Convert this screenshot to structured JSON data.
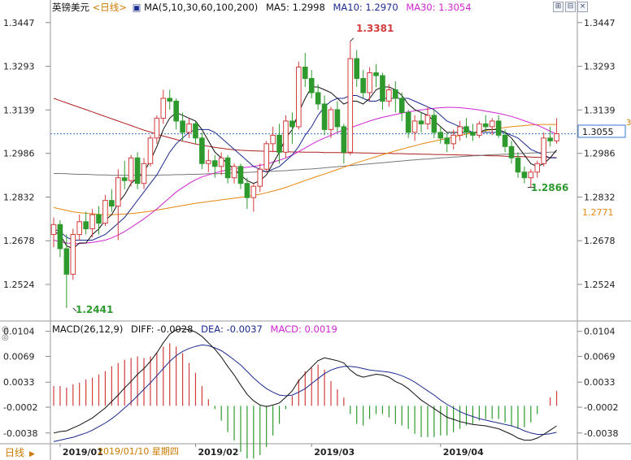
{
  "header": {
    "symbol": "英镑美元",
    "period": "<日线>",
    "ma_params": "MA(5,10,30,60,100,200)",
    "ma5": "MA5: 1.2998",
    "ma10": "MA10: 1.2970",
    "ma30": "MA30: 1.3054"
  },
  "macd_header": {
    "params": "MACD(26,12,9)",
    "diff": "DIFF: -0.0028",
    "dea": "DEA: -0.0037",
    "macd": "MACD: 0.0019"
  },
  "toolbar": {
    "btn1": "⊞",
    "btn2": "⊟",
    "btn3": "×"
  },
  "footer": {
    "period_tab": "日线",
    "cursor_date": "2019/01/10  星期四",
    "months": [
      "2019/01",
      "2019/02",
      "2019/03",
      "2019/04"
    ]
  },
  "price_axis": {
    "ticks": [
      "1.3447",
      "1.3293",
      "1.3139",
      "1.2986",
      "1.2832",
      "1.2678",
      "1.2524"
    ],
    "current_price": "1.3055",
    "ma200_label": "1.2771",
    "last_close_level": 1.3055,
    "marker": "3"
  },
  "annotations": {
    "high": "1.3381",
    "low": "1.2441",
    "recent_low": "1.2866"
  },
  "macd_axis": {
    "ticks": [
      "0.0104",
      "0.0069",
      "0.0033",
      "-0.0002",
      "-0.0038"
    ]
  },
  "colors": {
    "up": "#d23c3c",
    "down": "#2e9a2e",
    "ma5": "#111111",
    "ma10": "#1b2a8f",
    "ma30": "#d024d0",
    "ma60": "#e8870f",
    "ma100": "#777777",
    "ma200": "#b02020",
    "macd_up": "#d23c3c",
    "macd_down": "#2e9a2e",
    "diff": "#111111",
    "dea": "#1b2a8f",
    "current_line": "#3377cc"
  },
  "chart_data": [
    {
      "type": "candlestick",
      "title": "英镑美元 <日线>",
      "ylim": [
        1.2395,
        1.3475
      ],
      "ohlc": [
        [
          1.27,
          1.276,
          1.2655,
          1.2735
        ],
        [
          1.2735,
          1.275,
          1.262,
          1.265
        ],
        [
          1.265,
          1.27,
          1.2441,
          1.256
        ],
        [
          1.256,
          1.272,
          1.254,
          1.27
        ],
        [
          1.27,
          1.277,
          1.268,
          1.2745
        ],
        [
          1.2745,
          1.278,
          1.27,
          1.272
        ],
        [
          1.272,
          1.279,
          1.269,
          1.277
        ],
        [
          1.277,
          1.28,
          1.27,
          1.274
        ],
        [
          1.274,
          1.284,
          1.273,
          1.282
        ],
        [
          1.282,
          1.286,
          1.278,
          1.28
        ],
        [
          1.28,
          1.293,
          1.268,
          1.29
        ],
        [
          1.29,
          1.296,
          1.286,
          1.289
        ],
        [
          1.289,
          1.298,
          1.287,
          1.297
        ],
        [
          1.297,
          1.299,
          1.286,
          1.288
        ],
        [
          1.288,
          1.297,
          1.286,
          1.295
        ],
        [
          1.295,
          1.305,
          1.294,
          1.304
        ],
        [
          1.304,
          1.312,
          1.302,
          1.311
        ],
        [
          1.311,
          1.321,
          1.309,
          1.318
        ],
        [
          1.318,
          1.321,
          1.314,
          1.317
        ],
        [
          1.317,
          1.318,
          1.307,
          1.31
        ],
        [
          1.31,
          1.313,
          1.303,
          1.306
        ],
        [
          1.306,
          1.311,
          1.304,
          1.309
        ],
        [
          1.309,
          1.31,
          1.302,
          1.304
        ],
        [
          1.304,
          1.306,
          1.293,
          1.295
        ],
        [
          1.295,
          1.3,
          1.292,
          1.296
        ],
        [
          1.296,
          1.298,
          1.29,
          1.294
        ],
        [
          1.294,
          1.299,
          1.291,
          1.297
        ],
        [
          1.297,
          1.298,
          1.288,
          1.29
        ],
        [
          1.29,
          1.295,
          1.288,
          1.294
        ],
        [
          1.294,
          1.295,
          1.286,
          1.288
        ],
        [
          1.288,
          1.29,
          1.279,
          1.283
        ],
        [
          1.283,
          1.288,
          1.278,
          1.287
        ],
        [
          1.287,
          1.295,
          1.285,
          1.293
        ],
        [
          1.293,
          1.303,
          1.292,
          1.302
        ],
        [
          1.302,
          1.308,
          1.299,
          1.305
        ],
        [
          1.305,
          1.309,
          1.295,
          1.299
        ],
        [
          1.299,
          1.312,
          1.297,
          1.31
        ],
        [
          1.31,
          1.313,
          1.302,
          1.308
        ],
        [
          1.308,
          1.331,
          1.307,
          1.329
        ],
        [
          1.329,
          1.334,
          1.322,
          1.325
        ],
        [
          1.325,
          1.328,
          1.318,
          1.32
        ],
        [
          1.32,
          1.323,
          1.314,
          1.316
        ],
        [
          1.316,
          1.319,
          1.305,
          1.307
        ],
        [
          1.307,
          1.315,
          1.304,
          1.314
        ],
        [
          1.314,
          1.317,
          1.306,
          1.308
        ],
        [
          1.308,
          1.309,
          1.295,
          1.299
        ],
        [
          1.299,
          1.3381,
          1.298,
          1.332
        ],
        [
          1.332,
          1.335,
          1.322,
          1.325
        ],
        [
          1.325,
          1.328,
          1.318,
          1.32
        ],
        [
          1.32,
          1.329,
          1.317,
          1.327
        ],
        [
          1.327,
          1.33,
          1.322,
          1.326
        ],
        [
          1.326,
          1.327,
          1.314,
          1.317
        ],
        [
          1.317,
          1.323,
          1.315,
          1.321
        ],
        [
          1.321,
          1.324,
          1.313,
          1.318
        ],
        [
          1.318,
          1.32,
          1.31,
          1.313
        ],
        [
          1.313,
          1.314,
          1.304,
          1.306
        ],
        [
          1.306,
          1.312,
          1.303,
          1.31
        ],
        [
          1.31,
          1.313,
          1.306,
          1.309
        ],
        [
          1.309,
          1.315,
          1.307,
          1.312
        ],
        [
          1.312,
          1.314,
          1.304,
          1.306
        ],
        [
          1.306,
          1.308,
          1.302,
          1.304
        ],
        [
          1.304,
          1.306,
          1.299,
          1.302
        ],
        [
          1.302,
          1.307,
          1.3,
          1.305
        ],
        [
          1.305,
          1.31,
          1.303,
          1.308
        ],
        [
          1.308,
          1.311,
          1.304,
          1.306
        ],
        [
          1.306,
          1.309,
          1.303,
          1.305
        ],
        [
          1.305,
          1.31,
          1.304,
          1.309
        ],
        [
          1.309,
          1.312,
          1.306,
          1.308
        ],
        [
          1.308,
          1.311,
          1.305,
          1.31
        ],
        [
          1.31,
          1.312,
          1.304,
          1.305
        ],
        [
          1.305,
          1.307,
          1.299,
          1.301
        ],
        [
          1.301,
          1.303,
          1.295,
          1.297
        ],
        [
          1.297,
          1.299,
          1.29,
          1.292
        ],
        [
          1.292,
          1.294,
          1.288,
          1.29
        ],
        [
          1.29,
          1.293,
          1.2866,
          1.292
        ],
        [
          1.292,
          1.296,
          1.29,
          1.295
        ],
        [
          1.295,
          1.306,
          1.294,
          1.304
        ],
        [
          1.304,
          1.308,
          1.301,
          1.303
        ],
        [
          1.303,
          1.311,
          1.302,
          1.3055
        ]
      ],
      "ma5": [
        1.271,
        1.27,
        1.266,
        1.265,
        1.267,
        1.267,
        1.27,
        1.272,
        1.275,
        1.277,
        1.281,
        1.284,
        1.288,
        1.29,
        1.292,
        1.296,
        1.301,
        1.307,
        1.311,
        1.313,
        1.312,
        1.311,
        1.31,
        1.307,
        1.303,
        1.299,
        1.297,
        1.295,
        1.293,
        1.291,
        1.289,
        1.288,
        1.289,
        1.291,
        1.295,
        1.299,
        1.304,
        1.307,
        1.313,
        1.318,
        1.322,
        1.322,
        1.321,
        1.32,
        1.318,
        1.316,
        1.317,
        1.317,
        1.316,
        1.318,
        1.321,
        1.322,
        1.322,
        1.321,
        1.319,
        1.316,
        1.314,
        1.313,
        1.312,
        1.31,
        1.308,
        1.306,
        1.306,
        1.306,
        1.306,
        1.306,
        1.306,
        1.307,
        1.307,
        1.307,
        1.306,
        1.304,
        1.301,
        1.298,
        1.295,
        1.294,
        1.295,
        1.297,
        1.2998
      ],
      "ma10": [
        1.272,
        1.271,
        1.269,
        1.268,
        1.268,
        1.268,
        1.268,
        1.269,
        1.27,
        1.272,
        1.274,
        1.276,
        1.279,
        1.282,
        1.285,
        1.288,
        1.291,
        1.295,
        1.299,
        1.302,
        1.304,
        1.306,
        1.307,
        1.307,
        1.307,
        1.306,
        1.304,
        1.302,
        1.3,
        1.298,
        1.296,
        1.294,
        1.293,
        1.292,
        1.293,
        1.294,
        1.296,
        1.298,
        1.301,
        1.305,
        1.308,
        1.312,
        1.315,
        1.317,
        1.318,
        1.318,
        1.319,
        1.319,
        1.318,
        1.317,
        1.317,
        1.318,
        1.318,
        1.318,
        1.318,
        1.318,
        1.317,
        1.316,
        1.315,
        1.314,
        1.312,
        1.31,
        1.309,
        1.308,
        1.307,
        1.306,
        1.306,
        1.306,
        1.306,
        1.306,
        1.306,
        1.305,
        1.304,
        1.302,
        1.3,
        1.299,
        1.298,
        1.297,
        1.297
      ],
      "ma30": [
        1.268,
        1.2675,
        1.267,
        1.2668,
        1.2668,
        1.267,
        1.2672,
        1.2676,
        1.268,
        1.2688,
        1.2698,
        1.271,
        1.2725,
        1.274,
        1.2755,
        1.2772,
        1.279,
        1.281,
        1.283,
        1.285,
        1.2865,
        1.288,
        1.2893,
        1.2903,
        1.291,
        1.2917,
        1.2923,
        1.2928,
        1.2932,
        1.2935,
        1.2937,
        1.294,
        1.2944,
        1.2948,
        1.2955,
        1.2962,
        1.297,
        1.298,
        1.2992,
        1.3005,
        1.3018,
        1.303,
        1.304,
        1.305,
        1.306,
        1.3068,
        1.3076,
        1.3084,
        1.3092,
        1.31,
        1.3107,
        1.3113,
        1.3118,
        1.3123,
        1.3128,
        1.3132,
        1.3136,
        1.3139,
        1.3142,
        1.3145,
        1.3147,
        1.3148,
        1.3148,
        1.3147,
        1.3145,
        1.3142,
        1.3139,
        1.3135,
        1.3131,
        1.3127,
        1.3122,
        1.3116,
        1.3109,
        1.3101,
        1.3093,
        1.3085,
        1.3075,
        1.3064,
        1.3054
      ],
      "ma60": [
        1.2795,
        1.279,
        1.2785,
        1.278,
        1.2777,
        1.2775,
        1.2773,
        1.2771,
        1.277,
        1.277,
        1.2771,
        1.2772,
        1.2774,
        1.2776,
        1.2779,
        1.2782,
        1.2786,
        1.279,
        1.2794,
        1.2798,
        1.2802,
        1.2806,
        1.281,
        1.2813,
        1.2816,
        1.2819,
        1.2822,
        1.2825,
        1.2828,
        1.2831,
        1.2834,
        1.2838,
        1.2842,
        1.2847,
        1.2853,
        1.2859,
        1.2866,
        1.2874,
        1.2882,
        1.289,
        1.2898,
        1.2906,
        1.2913,
        1.2921,
        1.2929,
        1.2937,
        1.2945,
        1.2953,
        1.296,
        1.2967,
        1.2974,
        1.2981,
        1.2988,
        1.2995,
        1.3001,
        1.3007,
        1.3013,
        1.3019,
        1.3024,
        1.3029,
        1.3034,
        1.3039,
        1.3044,
        1.3049,
        1.3054,
        1.3058,
        1.3062,
        1.3066,
        1.307,
        1.3074,
        1.3077,
        1.308,
        1.3082,
        1.3084,
        1.3086,
        1.3087,
        1.3088,
        1.3088,
        1.3088
      ],
      "ma100": [
        1.2915,
        1.2915,
        1.2914,
        1.2913,
        1.2912,
        1.2912,
        1.2911,
        1.291,
        1.291,
        1.2909,
        1.2909,
        1.2909,
        1.2909,
        1.2909,
        1.2909,
        1.2909,
        1.2909,
        1.291,
        1.291,
        1.2911,
        1.2911,
        1.2912,
        1.2912,
        1.2913,
        1.2914,
        1.2914,
        1.2915,
        1.2916,
        1.2917,
        1.2918,
        1.2919,
        1.292,
        1.2921,
        1.2922,
        1.2923,
        1.2924,
        1.2925,
        1.2927,
        1.2928,
        1.293,
        1.2931,
        1.2933,
        1.2935,
        1.2937,
        1.2939,
        1.2941,
        1.2943,
        1.2945,
        1.2947,
        1.2949,
        1.2951,
        1.2953,
        1.2955,
        1.2957,
        1.2959,
        1.2961,
        1.2963,
        1.2965,
        1.2966,
        1.2968,
        1.297,
        1.2971,
        1.2973,
        1.2974,
        1.2976,
        1.2977,
        1.2978,
        1.298,
        1.2981,
        1.2982,
        1.2983,
        1.2984,
        1.2985,
        1.2986,
        1.2987,
        1.2988,
        1.2989,
        1.299,
        1.2991
      ],
      "ma200": [
        1.318,
        1.3172,
        1.3164,
        1.3156,
        1.3148,
        1.314,
        1.3132,
        1.3124,
        1.3116,
        1.3108,
        1.31,
        1.3092,
        1.3084,
        1.3076,
        1.3068,
        1.3061,
        1.3054,
        1.3047,
        1.3041,
        1.3035,
        1.3029,
        1.3024,
        1.3019,
        1.3015,
        1.3011,
        1.3007,
        1.3004,
        1.3001,
        1.2999,
        1.2997,
        1.2996,
        1.2995,
        1.2994,
        1.2993,
        1.2993,
        1.2992,
        1.2992,
        1.2991,
        1.2991,
        1.299,
        1.299,
        1.299,
        1.2989,
        1.2989,
        1.2989,
        1.2988,
        1.2988,
        1.2988,
        1.2987,
        1.2987,
        1.2986,
        1.2986,
        1.2986,
        1.2985,
        1.2985,
        1.2984,
        1.2984,
        1.2983,
        1.2983,
        1.2982,
        1.2982,
        1.2981,
        1.2981,
        1.298,
        1.298,
        1.2979,
        1.2979,
        1.2978,
        1.2977,
        1.2977,
        1.2976,
        1.2975,
        1.2975,
        1.2974,
        1.2973,
        1.2972,
        1.2972,
        1.2971,
        1.2971
      ]
    },
    {
      "type": "macd",
      "title": "MACD(26,12,9)",
      "ylim": [
        -0.0053,
        0.0115
      ],
      "diff": [
        -0.0038,
        -0.0036,
        -0.0035,
        -0.0031,
        -0.0027,
        -0.0022,
        -0.0017,
        -0.001,
        -0.0003,
        0.0006,
        0.0015,
        0.0025,
        0.0034,
        0.0044,
        0.0052,
        0.0062,
        0.0074,
        0.0088,
        0.01,
        0.0106,
        0.0108,
        0.0106,
        0.0103,
        0.0097,
        0.0088,
        0.0079,
        0.0068,
        0.0055,
        0.0043,
        0.0029,
        0.0016,
        0.0007,
        0.0001,
        -0.0001,
        0.0001,
        0.0004,
        0.0012,
        0.0021,
        0.0035,
        0.0045,
        0.0054,
        0.0063,
        0.0067,
        0.0065,
        0.0063,
        0.006,
        0.005,
        0.0043,
        0.004,
        0.0042,
        0.0044,
        0.0043,
        0.004,
        0.0034,
        0.003,
        0.0024,
        0.0016,
        0.0008,
        0.0002,
        -0.0004,
        -0.001,
        -0.0016,
        -0.0019,
        -0.0022,
        -0.0024,
        -0.0026,
        -0.0027,
        -0.0028,
        -0.003,
        -0.0032,
        -0.0036,
        -0.004,
        -0.0045,
        -0.0048,
        -0.0048,
        -0.0045,
        -0.004,
        -0.0034,
        -0.0028
      ],
      "dea": [
        -0.005,
        -0.0048,
        -0.0046,
        -0.0044,
        -0.0041,
        -0.0038,
        -0.0034,
        -0.0029,
        -0.0024,
        -0.0018,
        -0.0011,
        -0.0003,
        0.0005,
        0.0014,
        0.0023,
        0.0032,
        0.0042,
        0.0052,
        0.0062,
        0.007,
        0.0076,
        0.008,
        0.0083,
        0.0085,
        0.0084,
        0.0081,
        0.0077,
        0.0071,
        0.0064,
        0.0057,
        0.0048,
        0.0039,
        0.0031,
        0.0024,
        0.0019,
        0.0015,
        0.0014,
        0.0015,
        0.0019,
        0.0024,
        0.0031,
        0.0038,
        0.0045,
        0.005,
        0.0053,
        0.0055,
        0.0055,
        0.0054,
        0.0052,
        0.005,
        0.0049,
        0.0048,
        0.0047,
        0.0045,
        0.0042,
        0.0038,
        0.0033,
        0.0027,
        0.0021,
        0.0015,
        0.0008,
        0.0002,
        -0.0003,
        -0.0008,
        -0.0012,
        -0.0015,
        -0.0018,
        -0.002,
        -0.0022,
        -0.0024,
        -0.0026,
        -0.0028,
        -0.0031,
        -0.0035,
        -0.0038,
        -0.004,
        -0.004,
        -0.0039,
        -0.0037
      ]
    }
  ]
}
